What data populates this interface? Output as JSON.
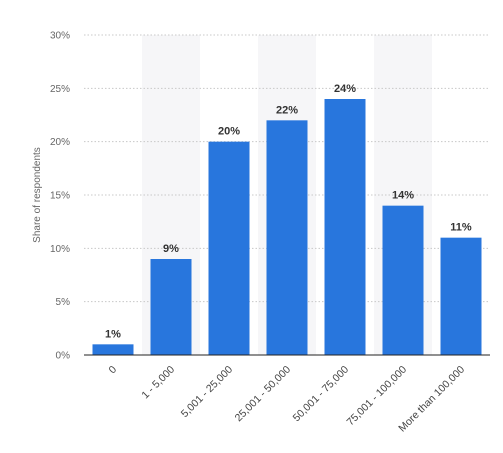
{
  "chart_data": {
    "type": "bar",
    "title": "",
    "xlabel": "",
    "ylabel": "Share of respondents",
    "categories": [
      "0",
      "1 - 5,000",
      "5,001 - 25,000",
      "25,001 - 50,000",
      "50,001 - 75,000",
      "75,001 - 100,000",
      "More than 100,000"
    ],
    "values": [
      1,
      9,
      20,
      22,
      24,
      14,
      11
    ],
    "value_labels": [
      "1%",
      "9%",
      "20%",
      "22%",
      "24%",
      "14%",
      "11%"
    ],
    "ylim": [
      0,
      30
    ],
    "yticks": [
      0,
      5,
      10,
      15,
      20,
      25,
      30
    ],
    "ytick_labels": [
      "0%",
      "5%",
      "10%",
      "15%",
      "20%",
      "25%",
      "30%"
    ],
    "grid": true,
    "legend": "none",
    "colors": {
      "bar": "#2876dd",
      "grid": "#c8c8c8",
      "band": "#f6f6f8",
      "axis": "#222222"
    }
  }
}
